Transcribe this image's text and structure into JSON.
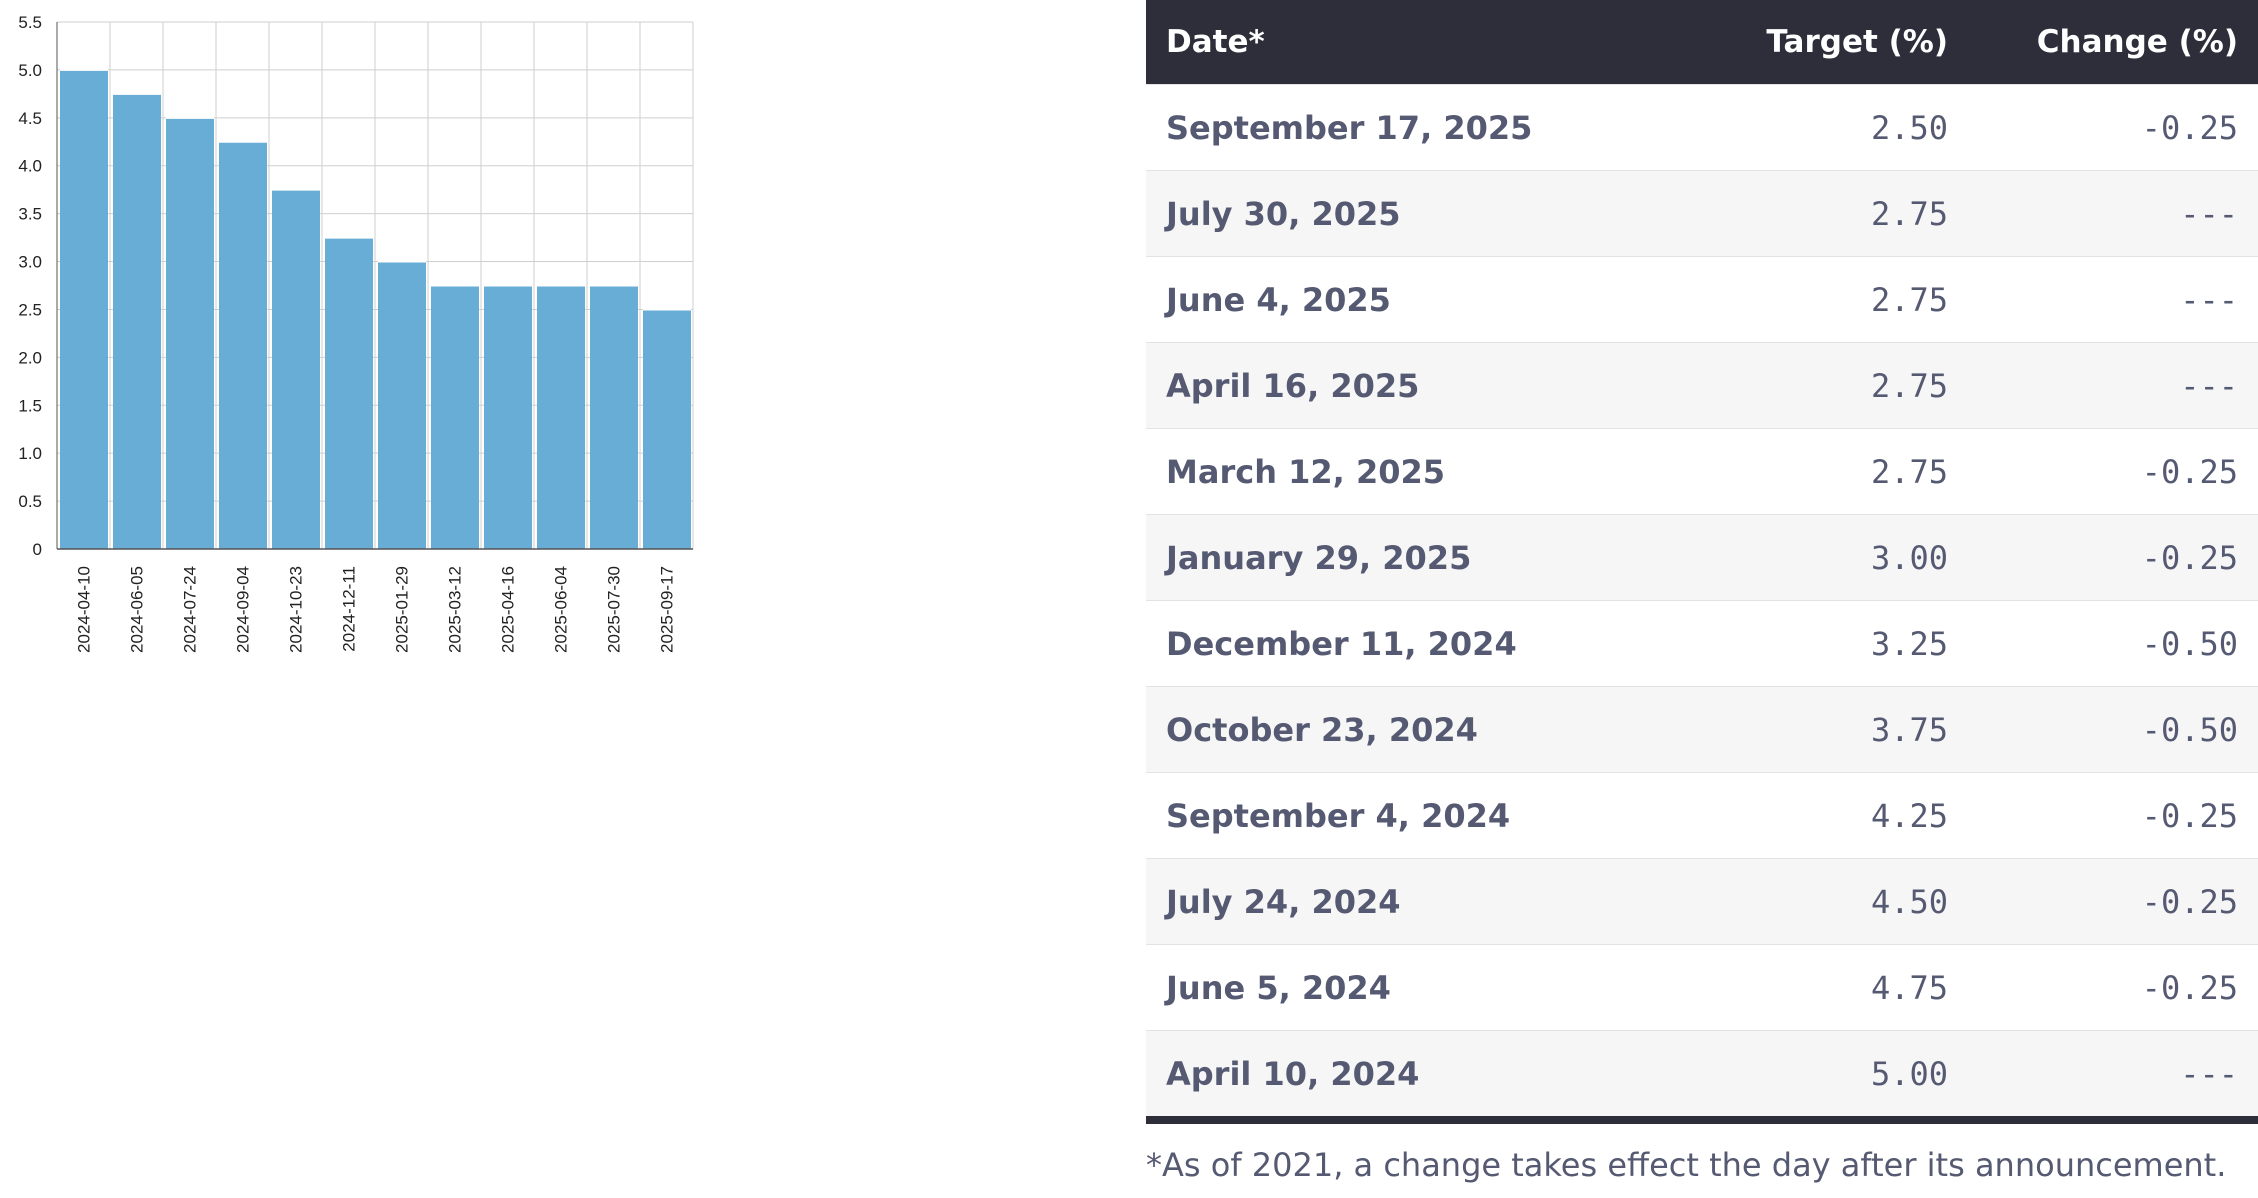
{
  "chart_data": {
    "type": "bar",
    "title": "",
    "xlabel": "",
    "ylabel": "",
    "categories": [
      "2024-04-10",
      "2024-06-05",
      "2024-07-24",
      "2024-09-04",
      "2024-10-23",
      "2024-12-11",
      "2025-01-29",
      "2025-03-12",
      "2025-04-16",
      "2025-06-04",
      "2025-07-30",
      "2025-09-17"
    ],
    "values": [
      5.0,
      4.75,
      4.5,
      4.25,
      3.75,
      3.25,
      3.0,
      2.75,
      2.75,
      2.75,
      2.75,
      2.5
    ],
    "ylim": [
      0,
      5.5
    ],
    "yticks": [
      "0",
      "0.5",
      "1.0",
      "1.5",
      "2.0",
      "2.5",
      "3.0",
      "3.5",
      "4.0",
      "4.5",
      "5.0",
      "5.5"
    ],
    "grid": true,
    "bar_color": "#67add5",
    "grid_color": "#cfcfcf"
  },
  "table": {
    "headers": {
      "date": "Date*",
      "target": "Target (%)",
      "change": "Change (%)"
    },
    "rows": [
      {
        "date": "September 17, 2025",
        "target": "2.50",
        "change": "-0.25"
      },
      {
        "date": "July 30, 2025",
        "target": "2.75",
        "change": "---"
      },
      {
        "date": "June 4, 2025",
        "target": "2.75",
        "change": "---"
      },
      {
        "date": "April 16, 2025",
        "target": "2.75",
        "change": "---"
      },
      {
        "date": "March 12, 2025",
        "target": "2.75",
        "change": "-0.25"
      },
      {
        "date": "January 29, 2025",
        "target": "3.00",
        "change": "-0.25"
      },
      {
        "date": "December 11, 2024",
        "target": "3.25",
        "change": "-0.50"
      },
      {
        "date": "October 23, 2024",
        "target": "3.75",
        "change": "-0.50"
      },
      {
        "date": "September 4, 2024",
        "target": "4.25",
        "change": "-0.25"
      },
      {
        "date": "July 24, 2024",
        "target": "4.50",
        "change": "-0.25"
      },
      {
        "date": "June 5, 2024",
        "target": "4.75",
        "change": "-0.25"
      },
      {
        "date": "April 10, 2024",
        "target": "5.00",
        "change": "---"
      }
    ],
    "header_color": "#2d2e3a"
  },
  "footnote": "*As of 2021, a change takes effect the day after its announcement."
}
